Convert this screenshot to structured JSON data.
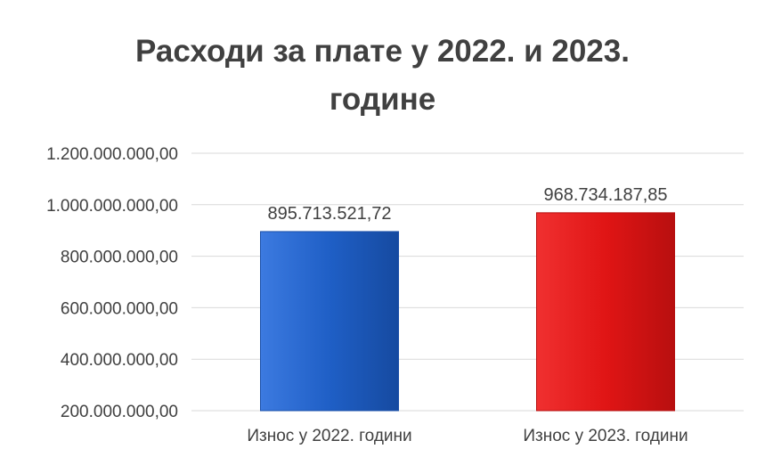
{
  "chart_data": {
    "type": "bar",
    "title_line1": "Расходи за плате у 2022. и 2023.",
    "title_line2": "године",
    "categories": [
      "Износ у 2022. години",
      "Износ у 2023. години"
    ],
    "values": [
      895713521.72,
      968734187.85
    ],
    "value_labels": [
      "895.713.521,72",
      "968.734.187,85"
    ],
    "colors": [
      "#1f5fc6",
      "#e01515"
    ],
    "ylim": [
      200000000,
      1200000000
    ],
    "y_ticks": [
      200000000,
      400000000,
      600000000,
      800000000,
      1000000000,
      1200000000
    ],
    "y_tick_labels": [
      "200.000.000,00",
      "400.000.000,00",
      "600.000.000,00",
      "800.000.000,00",
      "1.000.000.000,00",
      "1.200.000.000,00"
    ],
    "grid": true,
    "legend": "none"
  }
}
